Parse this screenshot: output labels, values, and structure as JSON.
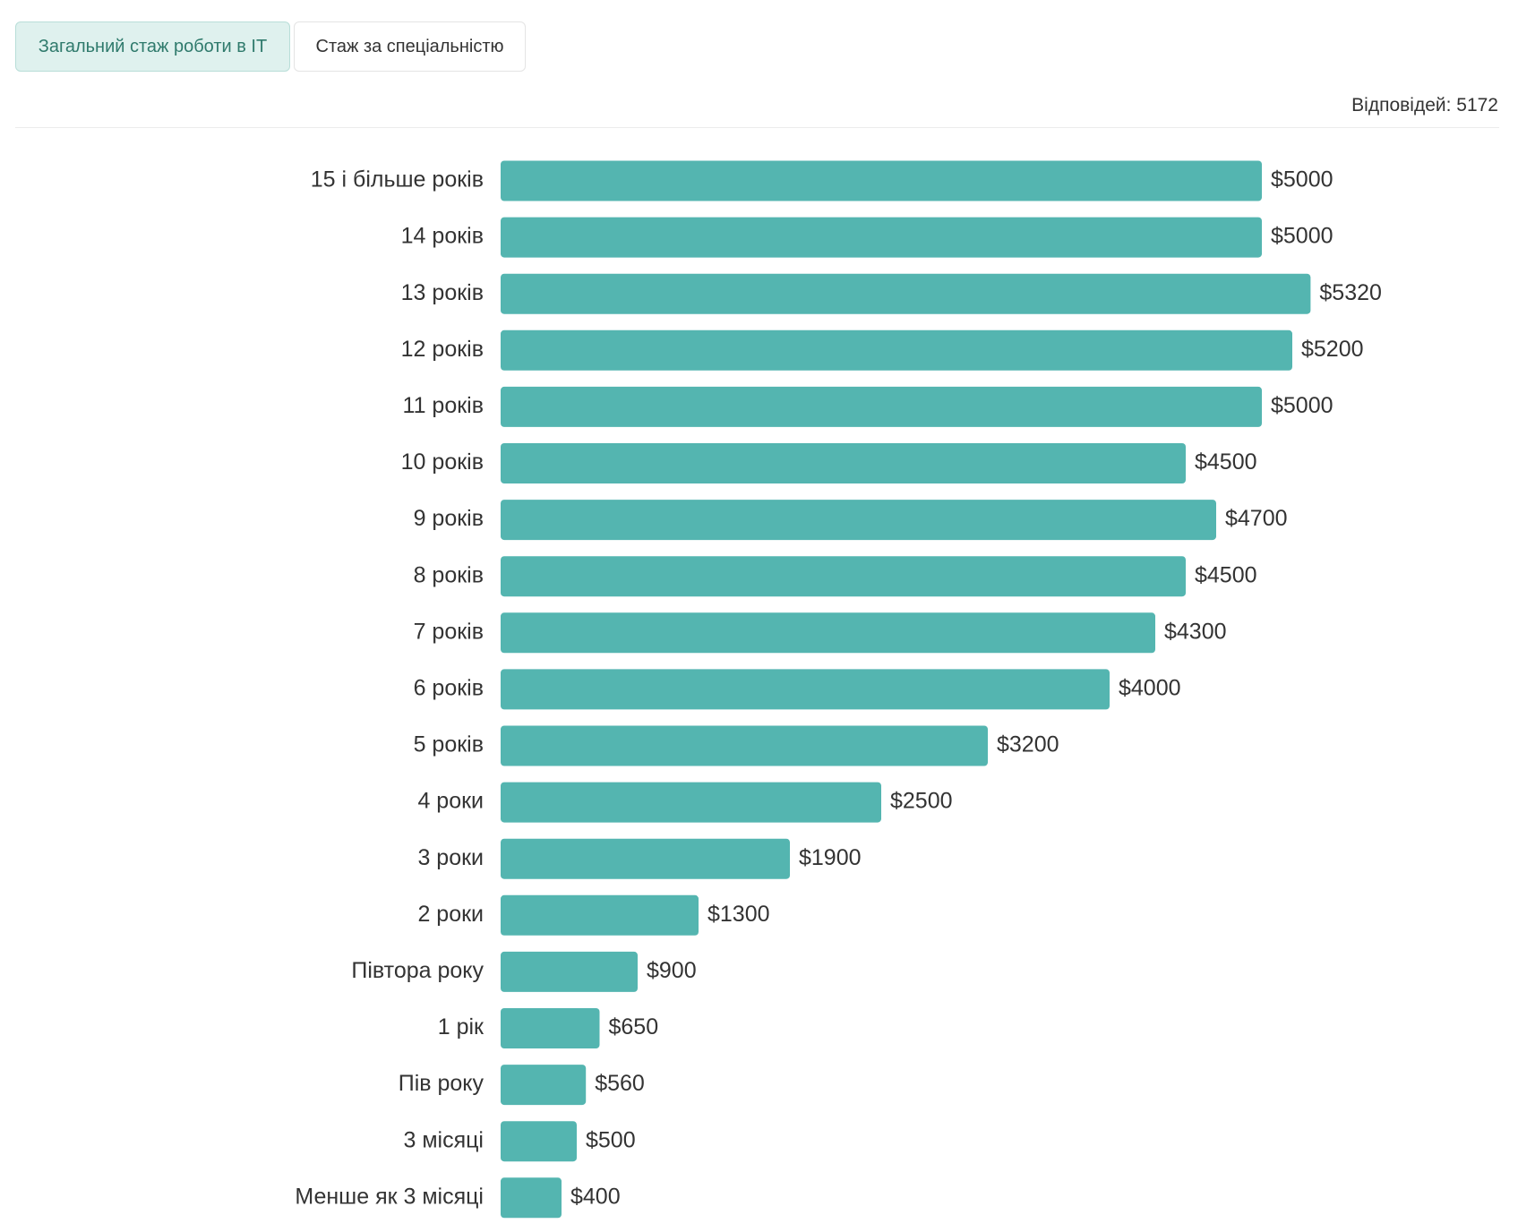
{
  "tabs": [
    "Загальний стаж роботи в IT",
    "Стаж за спеціальністю"
  ],
  "responses": "Відповідей: 5172",
  "chart_data": {
    "type": "hbar",
    "color": "#54b5b0",
    "categories": [
      "15 і більше років",
      "14 років",
      "13 років",
      "12 років",
      "11 років",
      "10 років",
      "9 років",
      "8 років",
      "7 років",
      "6 років",
      "5 років",
      "4 роки",
      "3 роки",
      "2 роки",
      "Півтора року",
      "1 рік",
      "Пів року",
      "3 місяці",
      "Менше як 3 місяці"
    ],
    "values": [
      5000,
      5000,
      5320,
      5200,
      5000,
      4500,
      4700,
      4500,
      4300,
      4000,
      3200,
      2500,
      1900,
      1300,
      900,
      650,
      560,
      500,
      400
    ],
    "value_labels": [
      "$5000",
      "$5000",
      "$5320",
      "$5200",
      "$5000",
      "$4500",
      "$4700",
      "$4500",
      "$4300",
      "$4000",
      "$3200",
      "$2500",
      "$1900",
      "$1300",
      "$900",
      "$650",
      "$560",
      "$500",
      "$400"
    ]
  }
}
